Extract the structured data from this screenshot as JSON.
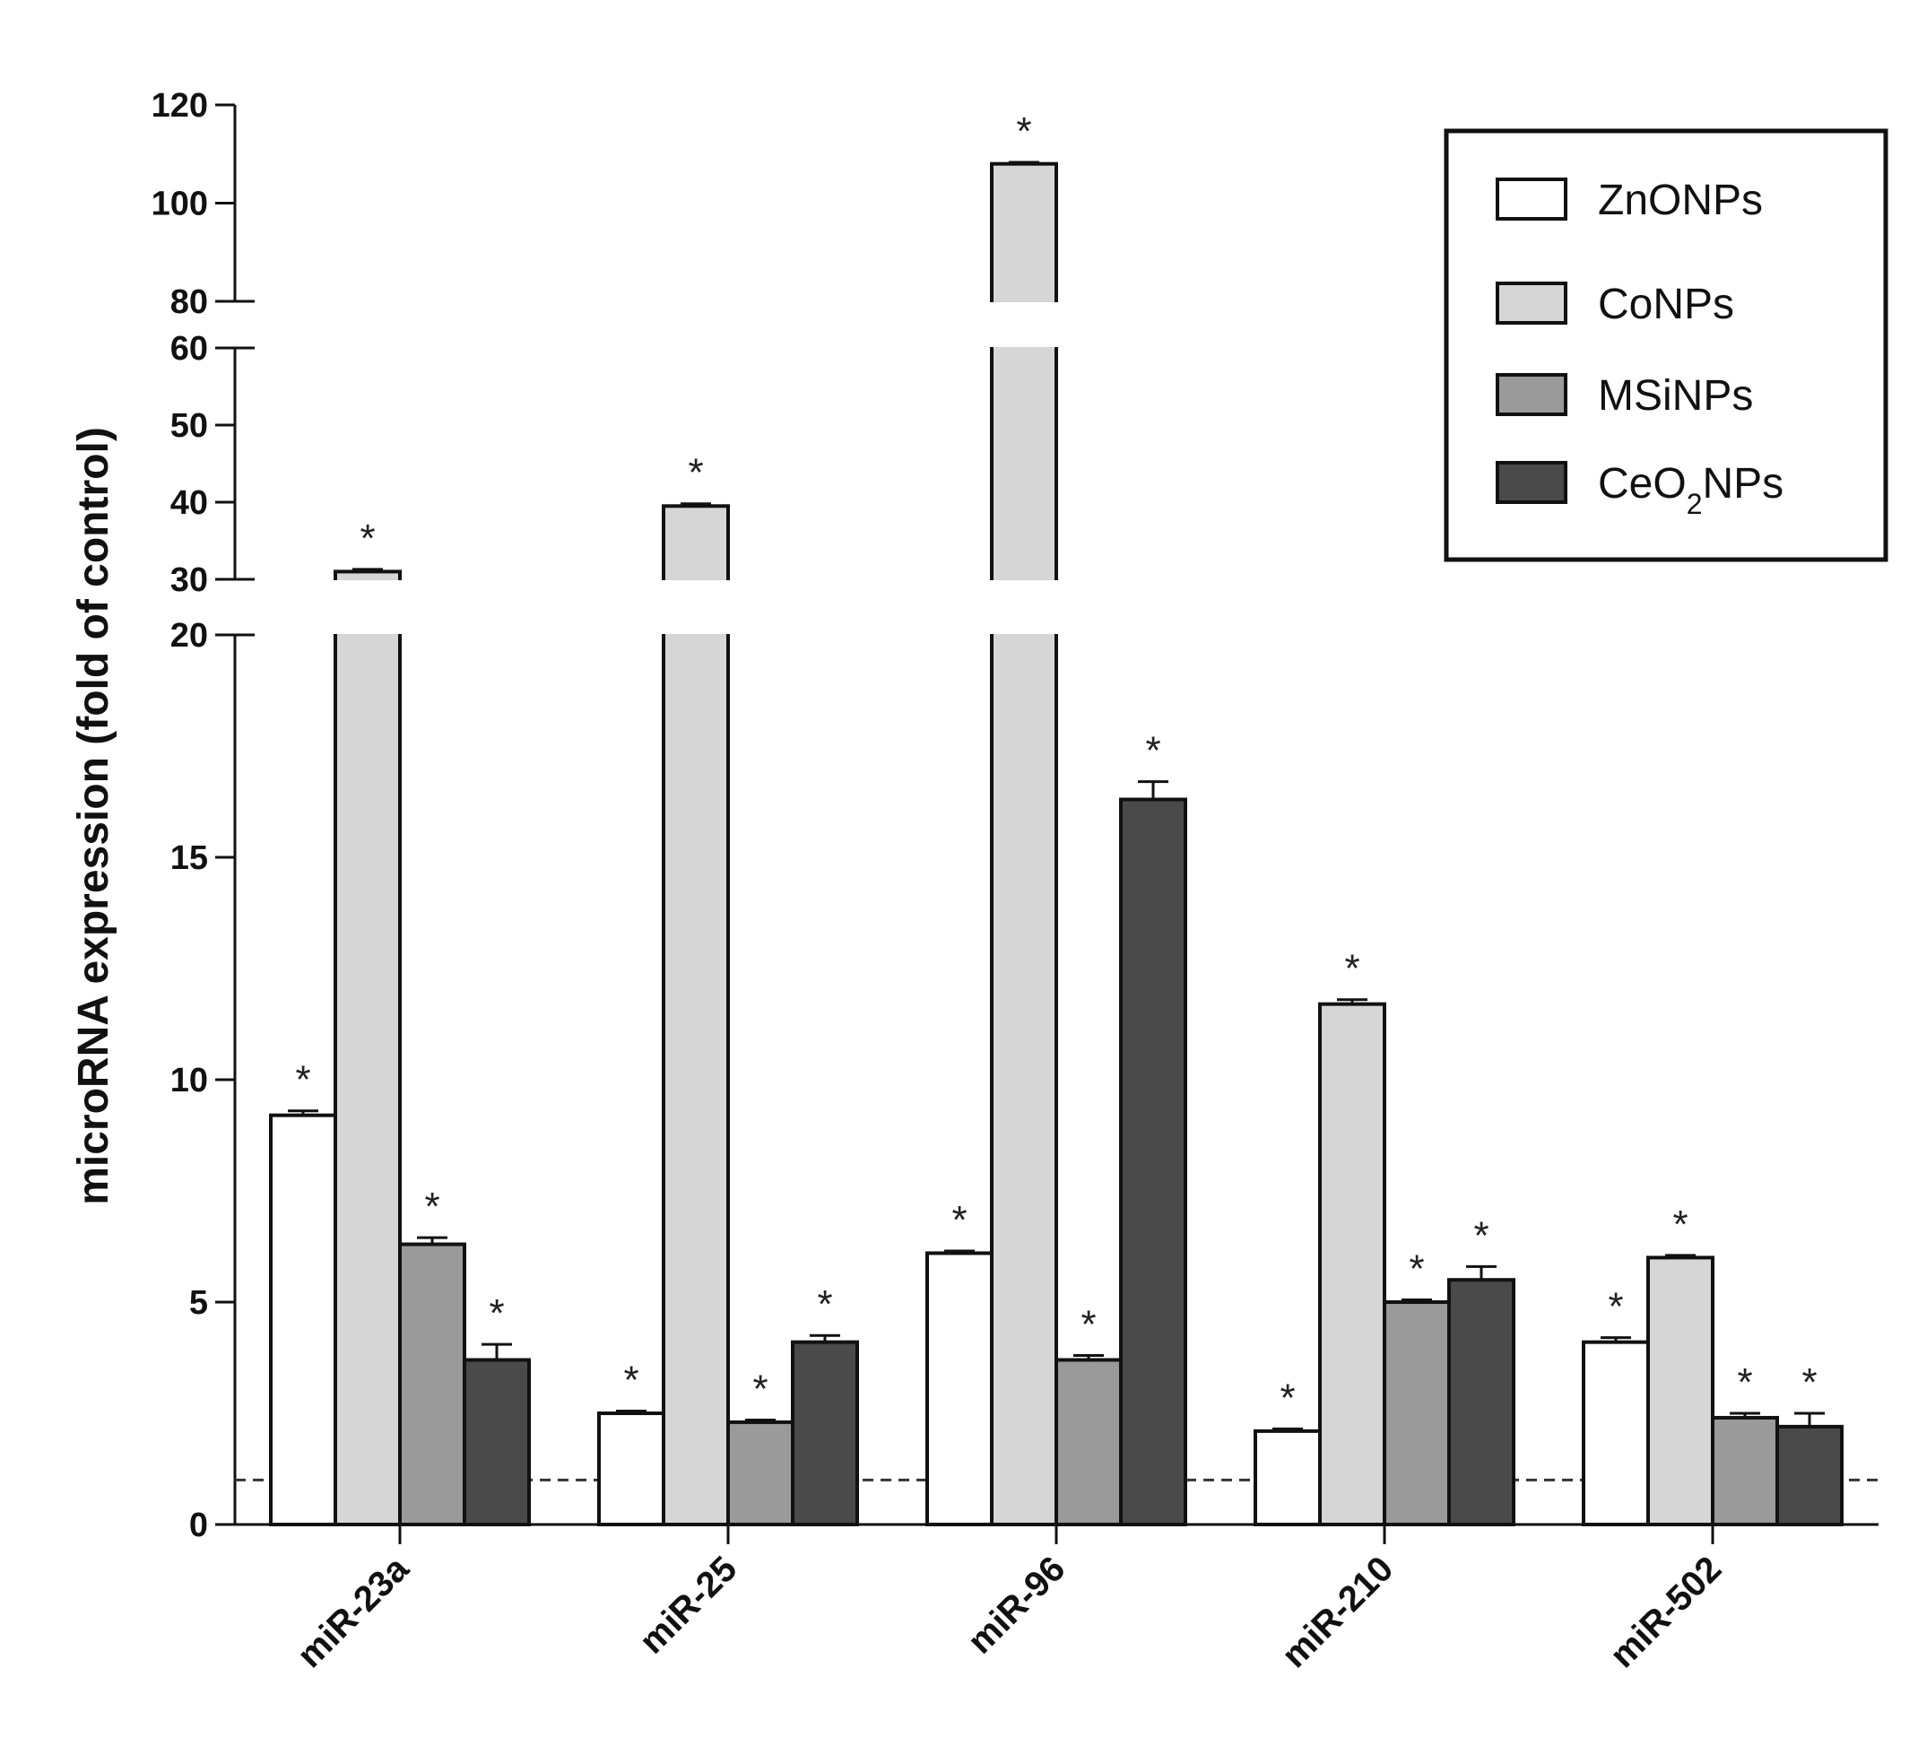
{
  "chart_data": {
    "type": "bar",
    "title": "",
    "xlabel": "",
    "ylabel": "microRNA expression (fold of control)",
    "categories": [
      "miR-23a",
      "miR-25",
      "miR-96",
      "miR-210",
      "miR-502"
    ],
    "series": [
      {
        "name": "ZnONPs",
        "color": "#ffffff",
        "values": [
          9.2,
          2.5,
          6.1,
          2.1,
          4.1
        ],
        "errors": [
          0.1,
          0.05,
          0.05,
          0.05,
          0.1
        ],
        "significant": [
          true,
          true,
          true,
          true,
          true
        ]
      },
      {
        "name": "CoNPs",
        "color": "#d6d6d6",
        "values": [
          31,
          39.5,
          108,
          11.7,
          6.0
        ],
        "errors": [
          0.3,
          0.3,
          0.3,
          0.1,
          0.05
        ],
        "significant": [
          true,
          true,
          true,
          true,
          true
        ]
      },
      {
        "name": "MSiNPs",
        "color": "#9a9a9a",
        "values": [
          6.3,
          2.3,
          3.7,
          5.0,
          2.4
        ],
        "errors": [
          0.15,
          0.05,
          0.1,
          0.05,
          0.1
        ],
        "significant": [
          true,
          true,
          true,
          true,
          true
        ]
      },
      {
        "name": "CeO2NPs",
        "color": "#4a4a4a",
        "values": [
          3.7,
          4.1,
          16.3,
          5.5,
          2.2
        ],
        "errors": [
          0.35,
          0.15,
          0.4,
          0.3,
          0.3
        ],
        "significant": [
          true,
          true,
          true,
          true,
          true
        ]
      }
    ],
    "legend": {
      "position": "top-right",
      "labels": [
        {
          "main": "ZnONPs",
          "sub": "",
          "rest": ""
        },
        {
          "main": "CoNPs",
          "sub": "",
          "rest": ""
        },
        {
          "main": "MSiNPs",
          "sub": "",
          "rest": ""
        },
        {
          "main": "CeO",
          "sub": "2",
          "rest": "NPs"
        }
      ]
    },
    "y_segments": [
      {
        "range": [
          0,
          20
        ],
        "ticks": [
          0,
          5,
          10,
          15,
          20
        ]
      },
      {
        "range": [
          30,
          60
        ],
        "ticks": [
          30,
          40,
          50,
          60
        ]
      },
      {
        "range": [
          80,
          120
        ],
        "ticks": [
          80,
          100,
          120
        ]
      }
    ],
    "reference_line": 1,
    "significance_marker": "*"
  }
}
